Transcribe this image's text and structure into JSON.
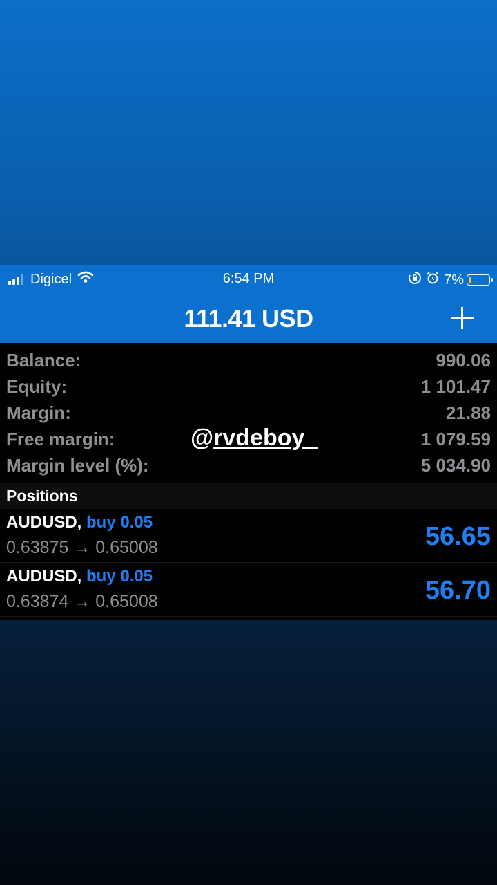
{
  "status_bar": {
    "carrier": "Digicel",
    "time": "6:54 PM",
    "battery_percent": "7%"
  },
  "header": {
    "title": "111.41 USD"
  },
  "summary": [
    {
      "label": "Balance:",
      "value": "990.06"
    },
    {
      "label": "Equity:",
      "value": "1 101.47"
    },
    {
      "label": "Margin:",
      "value": "21.88"
    },
    {
      "label": "Free margin:",
      "value": "1 079.59"
    },
    {
      "label": "Margin level (%):",
      "value": "5 034.90"
    }
  ],
  "watermark": {
    "at": "@",
    "handle": "rvdeboy_"
  },
  "positions": {
    "header": "Positions",
    "items": [
      {
        "symbol": "AUDUSD,",
        "type": "buy 0.05",
        "prices": "0.63875 → 0.65008",
        "profit": "56.65"
      },
      {
        "symbol": "AUDUSD,",
        "type": "buy 0.05",
        "prices": "0.63874 → 0.65008",
        "profit": "56.70"
      }
    ]
  },
  "colors": {
    "accent_blue": "#0c70ce",
    "profit_blue": "#1f7ef2",
    "label_gray": "#8e8e93"
  }
}
